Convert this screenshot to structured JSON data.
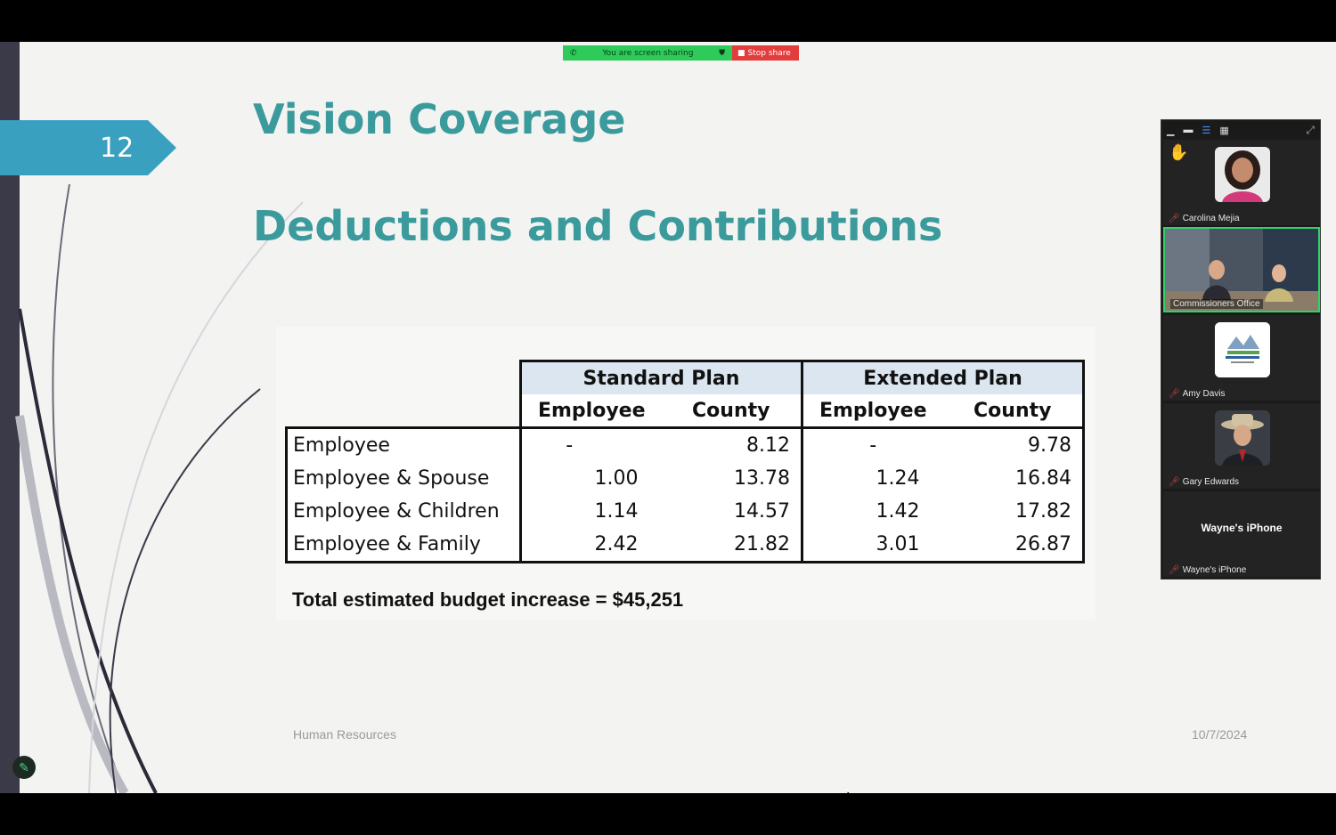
{
  "slide": {
    "number": "12",
    "title_line1": "Vision Coverage",
    "title_line2": "Deductions and Contributions",
    "footer_left": "Human Resources",
    "footer_right": "10/7/2024",
    "total_text": "Total estimated budget increase = $45,251"
  },
  "share_bar": {
    "status_text": "You are screen sharing",
    "stop_label": "Stop share"
  },
  "table": {
    "plans": [
      "Standard Plan",
      "Extended Plan"
    ],
    "subheaders": [
      "Employee",
      "County",
      "Employee",
      "County"
    ],
    "rows": [
      {
        "label": "Employee",
        "std_emp": "-",
        "std_cty": "8.12",
        "ext_emp": "-",
        "ext_cty": "9.78"
      },
      {
        "label": "Employee & Spouse",
        "std_emp": "1.00",
        "std_cty": "13.78",
        "ext_emp": "1.24",
        "ext_cty": "16.84"
      },
      {
        "label": "Employee & Children",
        "std_emp": "1.14",
        "std_cty": "14.57",
        "ext_emp": "1.42",
        "ext_cty": "17.82"
      },
      {
        "label": "Employee & Family",
        "std_emp": "2.42",
        "std_cty": "21.82",
        "ext_emp": "3.01",
        "ext_cty": "26.87"
      }
    ]
  },
  "participants": [
    {
      "name": "Carolina Mejia",
      "hand_raised": true,
      "muted": true
    },
    {
      "name": "Commissioners Office",
      "active_speaker": true
    },
    {
      "name": "Amy Davis",
      "muted": true
    },
    {
      "name": "Gary Edwards",
      "muted": true
    },
    {
      "name": "Wayne's iPhone",
      "display_name": "Wayne's iPhone",
      "muted": true
    }
  ],
  "colors": {
    "title": "#3a9a9c",
    "tab": "#3aa0c0",
    "share_green": "#2ecb5a",
    "share_red": "#e23c3c",
    "active_speaker": "#2fd36a"
  }
}
